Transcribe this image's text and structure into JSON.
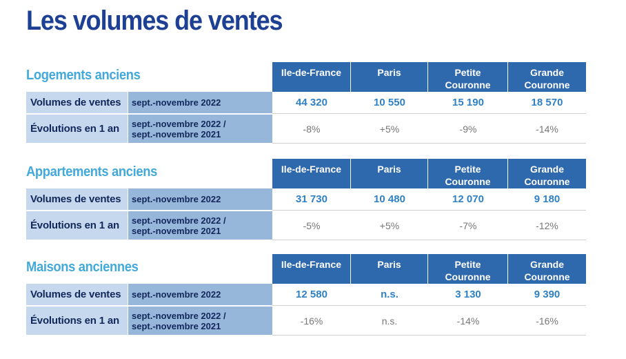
{
  "title": "Les volumes de ventes",
  "columns": [
    "Ile-de-France",
    "Paris",
    "Petite Couronne",
    "Grande Couronne"
  ],
  "row_labels": {
    "volumes": "Volumes de ventes",
    "evolutions": "Évolutions en 1 an"
  },
  "periods": {
    "current": "sept.-novembre 2022",
    "compare_line1": "sept.-novembre 2022 /",
    "compare_line2": "sept.-novembre 2021"
  },
  "sections": [
    {
      "title": "Logements anciens",
      "volumes": [
        "44 320",
        "10 550",
        "15 190",
        "18 570"
      ],
      "evolutions": [
        "-8%",
        "+5%",
        "-9%",
        "-14%"
      ]
    },
    {
      "title": "Appartements anciens",
      "volumes": [
        "31 730",
        "10 480",
        "12 070",
        "9 180"
      ],
      "evolutions": [
        "-5%",
        "+5%",
        "-7%",
        "-12%"
      ]
    },
    {
      "title": "Maisons anciennes",
      "volumes": [
        "12 580",
        "n.s.",
        "3 130",
        "9 390"
      ],
      "evolutions": [
        "-16%",
        "n.s.",
        "-14%",
        "-16%"
      ]
    }
  ],
  "colors": {
    "title": "#1d3f94",
    "section_title": "#43a9da",
    "header_bg": "#2f69ad",
    "label_bg": "#c5d8ed",
    "period_bg": "#96b6da",
    "value_text": "#2f80c4"
  }
}
